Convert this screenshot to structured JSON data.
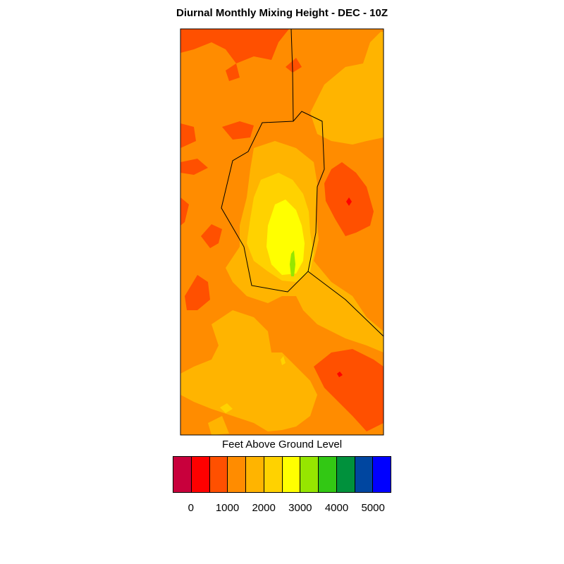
{
  "title": "Diurnal Monthly Mixing Height - DEC - 10Z",
  "legend": {
    "title": "Feet Above Ground Level",
    "colors": [
      "#c8003c",
      "#ff0000",
      "#ff5000",
      "#ff8c00",
      "#ffb400",
      "#ffd200",
      "#ffff00",
      "#96e600",
      "#32c814",
      "#00913c",
      "#0046a0",
      "#0000ff"
    ],
    "ticks": [
      "0",
      "1000",
      "2000",
      "3000",
      "4000",
      "5000"
    ]
  },
  "palette": {
    "background_level": "#ff8c00",
    "low": "#ff5000",
    "lowest": "#ff0000",
    "mid": "#ffb400",
    "mid_high": "#ffd200",
    "high": "#ffff00",
    "peak": "#96e600"
  }
}
